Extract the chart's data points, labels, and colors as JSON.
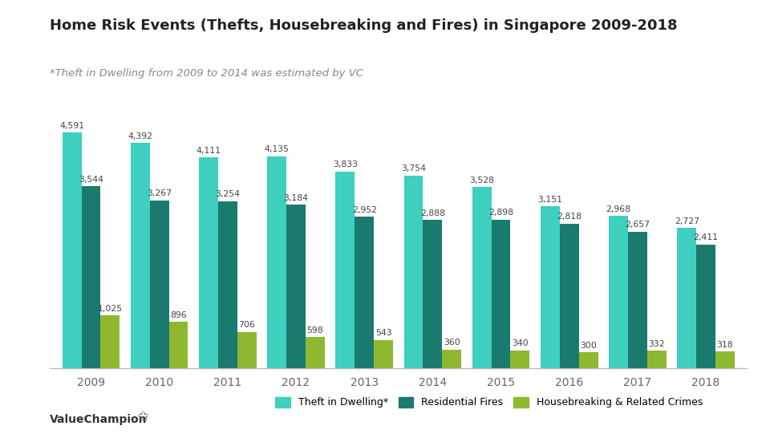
{
  "title": "Home Risk Events (Thefts, Housebreaking and Fires) in Singapore 2009-2018",
  "subtitle": "*Theft in Dwelling from 2009 to 2014 was estimated by VC",
  "years": [
    2009,
    2010,
    2011,
    2012,
    2013,
    2014,
    2015,
    2016,
    2017,
    2018
  ],
  "theft": [
    4591,
    4392,
    4111,
    4135,
    3833,
    3754,
    3528,
    3151,
    2968,
    2727
  ],
  "fires": [
    3544,
    3267,
    3254,
    3184,
    2952,
    2888,
    2898,
    2818,
    2657,
    2411
  ],
  "housebreaking": [
    1025,
    896,
    706,
    598,
    543,
    360,
    340,
    300,
    332,
    318
  ],
  "theft_color": "#3ECFBE",
  "fires_color": "#1A7A6E",
  "housebreaking_color": "#8DB830",
  "background_color": "#FFFFFF",
  "bar_width": 0.28,
  "ylim": [
    0,
    5300
  ],
  "legend_labels": [
    "Theft in Dwelling*",
    "Residential Fires",
    "Housebreaking & Related Crimes"
  ],
  "footer_text": "ValueChampion"
}
